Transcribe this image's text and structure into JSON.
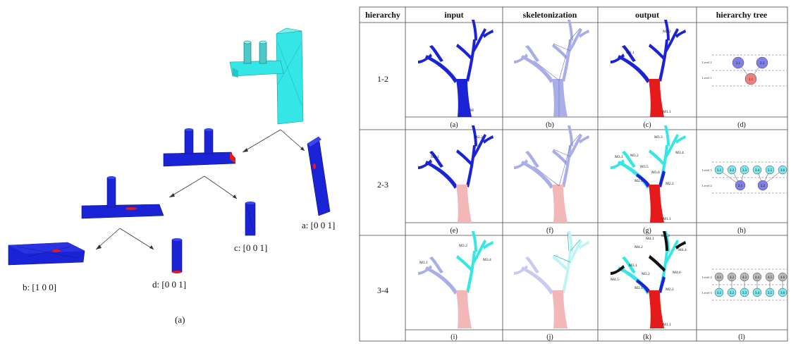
{
  "left_panel": {
    "caption": "(a)",
    "labels": {
      "a": "a: [0 0 1]",
      "b": "b: [1 0 0]",
      "c": "c: [0 0 1]",
      "d": "d: [0 0 1]"
    }
  },
  "table": {
    "headers": [
      "hierarchy",
      "input",
      "skeletonization",
      "output",
      "hierarchy tree"
    ],
    "rows": [
      {
        "hierarchy": "1-2",
        "captions": [
          "(a)",
          "(b)",
          "(c)",
          "(d)"
        ],
        "input_labels": [
          "M"
        ],
        "output_labels": [
          "M2.2",
          "M2.1",
          "M1.1"
        ],
        "levels": [
          "Level 2",
          "Level 1"
        ],
        "nodes": [
          "2.1",
          "2.2",
          "1.1"
        ]
      },
      {
        "hierarchy": "2-3",
        "captions": [
          "(e)",
          "(f)",
          "(g)",
          "(h)"
        ],
        "input_labels": [
          "M2.2",
          "M2.1"
        ],
        "output_labels": [
          "M3.3",
          "M3.4",
          "M3.2",
          "M3.1",
          "M3.5",
          "M3.6",
          "M2.1",
          "M2.2",
          "M1.1"
        ],
        "levels": [
          "Level 3",
          "Level 2"
        ],
        "nodes": [
          "3.1",
          "3.2",
          "3.3",
          "3.4",
          "3.5",
          "3.6",
          "2.1",
          "2.2"
        ]
      },
      {
        "hierarchy": "3-4",
        "captions": [
          "(i)",
          "(j)",
          "(k)",
          "(l)"
        ],
        "input_labels": [
          "M3.3",
          "M3.4",
          "M3.1"
        ],
        "output_labels": [
          "M4.1",
          "M4.2",
          "M4.3",
          "M4.4",
          "M4.5",
          "M4.6",
          "M3.1",
          "M3.2",
          "M2.1",
          "M2.2",
          "M1.1"
        ],
        "levels": [
          "Level 4",
          "Level 3"
        ],
        "nodes": [
          "4.1",
          "4.2",
          "4.3",
          "4.4",
          "4.5",
          "4.6",
          "3.1",
          "3.2",
          "3.3",
          "3.4",
          "3.5",
          "3.6"
        ]
      }
    ]
  },
  "colors": {
    "blue": "#1b23d6",
    "cyan": "#35e6e6",
    "red": "#e51a1a",
    "pink": "#f2b8b8",
    "lavender": "#a9aee8",
    "black": "#111111",
    "node_purple": "#8080e8",
    "node_red": "#f08080",
    "node_cyan": "#7ae8ee",
    "node_gray": "#b8b8b8"
  }
}
